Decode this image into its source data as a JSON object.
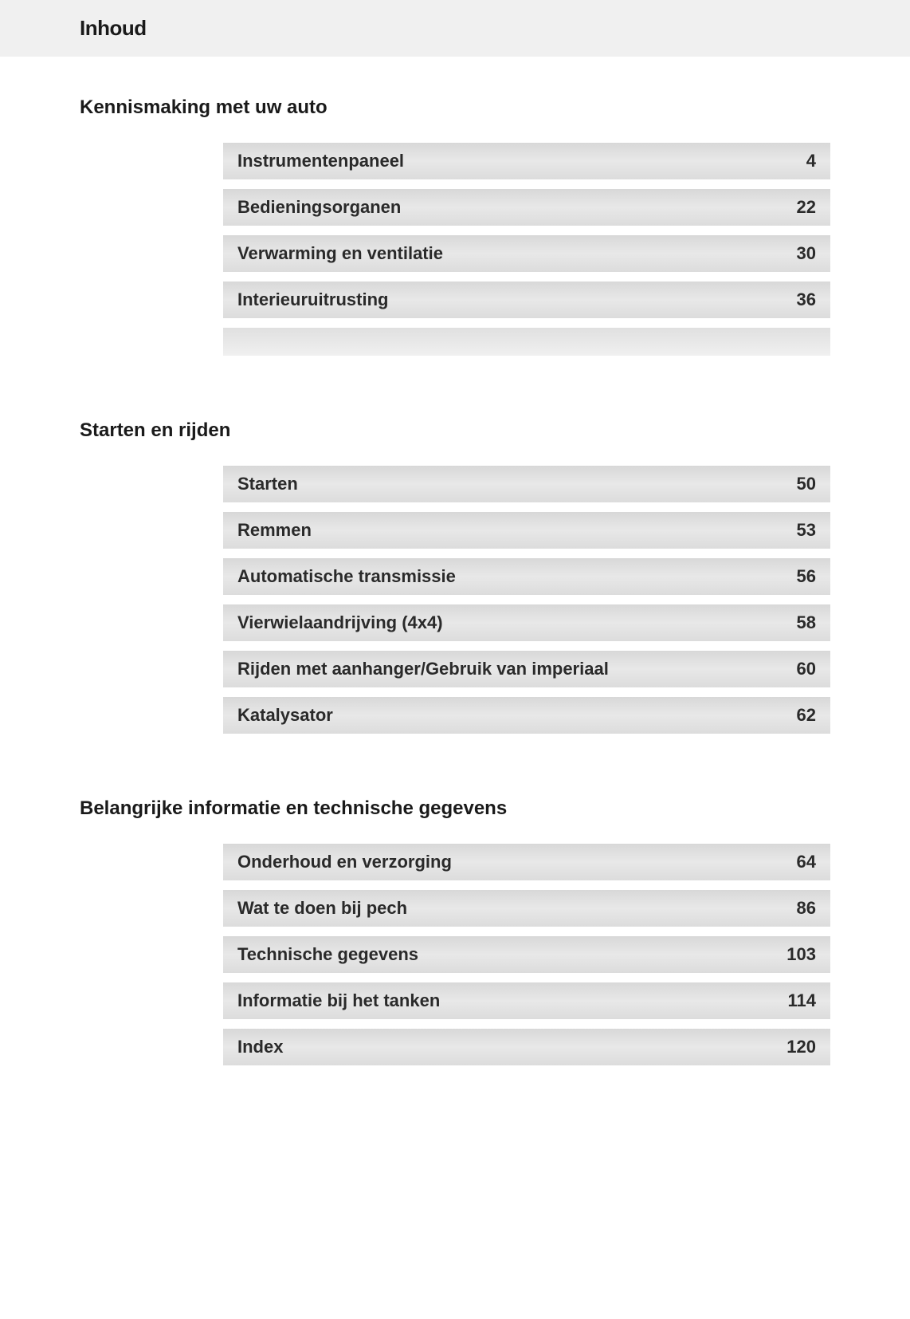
{
  "header": {
    "title": "Inhoud"
  },
  "sections": [
    {
      "title": "Kennismaking met uw auto",
      "items": [
        {
          "label": "Instrumentenpaneel",
          "page": "4"
        },
        {
          "label": "Bedieningsorganen",
          "page": "22"
        },
        {
          "label": "Verwarming en ventilatie",
          "page": "30"
        },
        {
          "label": "Interieuruitrusting",
          "page": "36"
        }
      ],
      "has_trailing_spacer": true
    },
    {
      "title": "Starten en rijden",
      "items": [
        {
          "label": "Starten",
          "page": "50"
        },
        {
          "label": "Remmen",
          "page": "53"
        },
        {
          "label": "Automatische transmissie",
          "page": "56"
        },
        {
          "label": "Vierwielaandrijving (4x4)",
          "page": "58"
        },
        {
          "label": "Rijden met aanhanger/Gebruik van imperiaal",
          "page": "60"
        },
        {
          "label": "Katalysator",
          "page": "62"
        }
      ],
      "has_trailing_spacer": false
    },
    {
      "title": "Belangrijke informatie en technische gegevens",
      "items": [
        {
          "label": "Onderhoud en verzorging",
          "page": "64"
        },
        {
          "label": "Wat te doen bij pech",
          "page": "86"
        },
        {
          "label": "Technische gegevens",
          "page": "103"
        },
        {
          "label": "Informatie bij het tanken",
          "page": "114"
        },
        {
          "label": "Index",
          "page": "120"
        }
      ],
      "has_trailing_spacer": false
    }
  ],
  "style": {
    "header_bg": "#f0f0f0",
    "row_bg_start": "#d8d8d8",
    "row_bg_mid": "#e8e8e8",
    "row_bg_end": "#dcdcdc",
    "text_color": "#1a1a1a",
    "row_text_color": "#2a2a2a",
    "page_bg": "#ffffff",
    "header_fontsize": 26,
    "section_title_fontsize": 24,
    "row_fontsize": 22
  }
}
